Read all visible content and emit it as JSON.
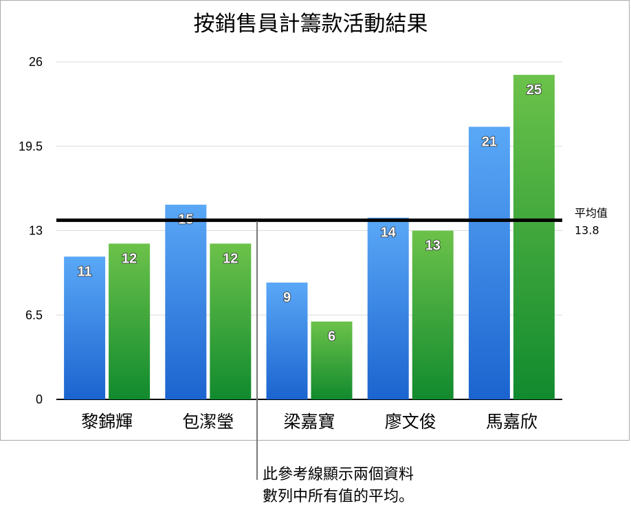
{
  "chart_data": {
    "type": "bar",
    "title": "按銷售員計籌款活動結果",
    "categories": [
      "黎錦輝",
      "包潔瑩",
      "梁嘉寶",
      "廖文俊",
      "馬嘉欣"
    ],
    "series": [
      {
        "values": [
          11,
          15,
          9,
          14,
          21
        ],
        "color": "#3d8ee8"
      },
      {
        "values": [
          12,
          12,
          6,
          13,
          25
        ],
        "color": "#3aa83c"
      }
    ],
    "ylim": [
      0,
      26
    ],
    "yticks": [
      "0",
      "6.5",
      "13",
      "19.5",
      "26"
    ],
    "grid": true,
    "reference_line": {
      "value": 13.8,
      "label": "平均值",
      "value_label": "13.8"
    },
    "annotation": [
      "此參考線顯示兩個資料",
      "數列中所有值的平均。"
    ]
  }
}
